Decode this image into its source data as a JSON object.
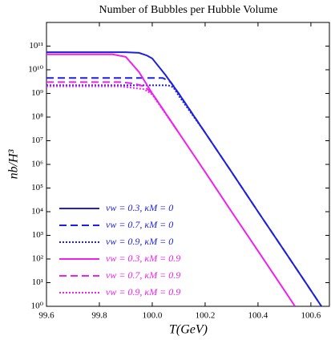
{
  "chart_data": {
    "type": "line",
    "title": "Number of Bubbles per Hubble Volume",
    "x_label": "T(GeV)",
    "y_label": "nb/H³",
    "ylog": true,
    "xlim": [
      99.6,
      100.67
    ],
    "ylim": [
      1,
      1000000000000.0
    ],
    "xticks": [
      99.6,
      99.8,
      {
        "value": 100,
        "label": "100.0"
      },
      100.2,
      100.4,
      100.6
    ],
    "yticks": [
      {
        "value": 1,
        "label": "10⁰"
      },
      {
        "value": 10,
        "label": "10¹"
      },
      {
        "value": 100,
        "label": "10²"
      },
      {
        "value": 1000,
        "label": "10³"
      },
      {
        "value": 10000,
        "label": "10⁴"
      },
      {
        "value": 100000,
        "label": "10⁵"
      },
      {
        "value": 1000000,
        "label": "10⁶"
      },
      {
        "value": 10000000,
        "label": "10⁷"
      },
      {
        "value": 100000000,
        "label": "10⁸"
      },
      {
        "value": 1000000000,
        "label": "10⁹"
      },
      {
        "value": 10000000000,
        "label": "10¹⁰"
      },
      {
        "value": 100000000000,
        "label": "10¹¹"
      }
    ],
    "series": [
      {
        "name": "vw = 0.3, κM = 0",
        "color": "#1f1fe0",
        "dash": "solid",
        "x": [
          99.6,
          99.9,
          99.95,
          99.98,
          100.0,
          100.05,
          100.1,
          100.2,
          100.3,
          100.4,
          100.5,
          100.6,
          100.64
        ],
        "values": [
          55000000000.0,
          55000000000.0,
          52000000000.0,
          40000000000.0,
          30000000000.0,
          6000000000.0,
          1000000000.0,
          22000000.0,
          480000.0,
          10000.0,
          220,
          4.7,
          1
        ]
      },
      {
        "name": "vw = 0.7, κM = 0",
        "color": "#1f1fe0",
        "dash": "dashed",
        "x": [
          99.6,
          100.04,
          100.07,
          100.1,
          100.2,
          100.3,
          100.4,
          100.5,
          100.6,
          100.64
        ],
        "values": [
          4500000000.0,
          4500000000.0,
          3000000000.0,
          1000000000.0,
          22000000.0,
          480000.0,
          10000.0,
          220,
          4.7,
          1
        ]
      },
      {
        "name": "vw = 0.9, κM = 0",
        "color": "#1f1fe0",
        "dash": "dotted",
        "x": [
          99.6,
          100.06,
          100.08,
          100.1,
          100.2
        ],
        "values": [
          2200000000.0,
          2200000000.0,
          1800000000.0,
          800000000.0,
          22000000.0
        ]
      },
      {
        "name": "vw = 0.3, κM = 0.9",
        "color": "#f020f0",
        "dash": "solid",
        "x": [
          99.6,
          99.85,
          99.9,
          99.95,
          100.0,
          100.1,
          100.2,
          100.3,
          100.4,
          100.5,
          100.54
        ],
        "values": [
          45000000000.0,
          45000000000.0,
          35000000000.0,
          8000000000.0,
          1000000000.0,
          22000000.0,
          480000.0,
          10000.0,
          220,
          4.7,
          1
        ]
      },
      {
        "name": "vw = 0.7, κM = 0.9",
        "color": "#f020f0",
        "dash": "dashed",
        "x": [
          99.6,
          99.88,
          99.93,
          99.97,
          100.0,
          100.1
        ],
        "values": [
          3000000000.0,
          3000000000.0,
          2600000000.0,
          2000000000.0,
          1000000000.0,
          22000000.0
        ]
      },
      {
        "name": "vw = 0.9, κM = 0.9",
        "color": "#f020f0",
        "dash": "dotted",
        "x": [
          99.6,
          99.88,
          99.93,
          99.97,
          100.0,
          100.1
        ],
        "values": [
          2000000000.0,
          2000000000.0,
          1700000000.0,
          1500000000.0,
          900000000.0,
          22000000.0
        ]
      }
    ]
  }
}
